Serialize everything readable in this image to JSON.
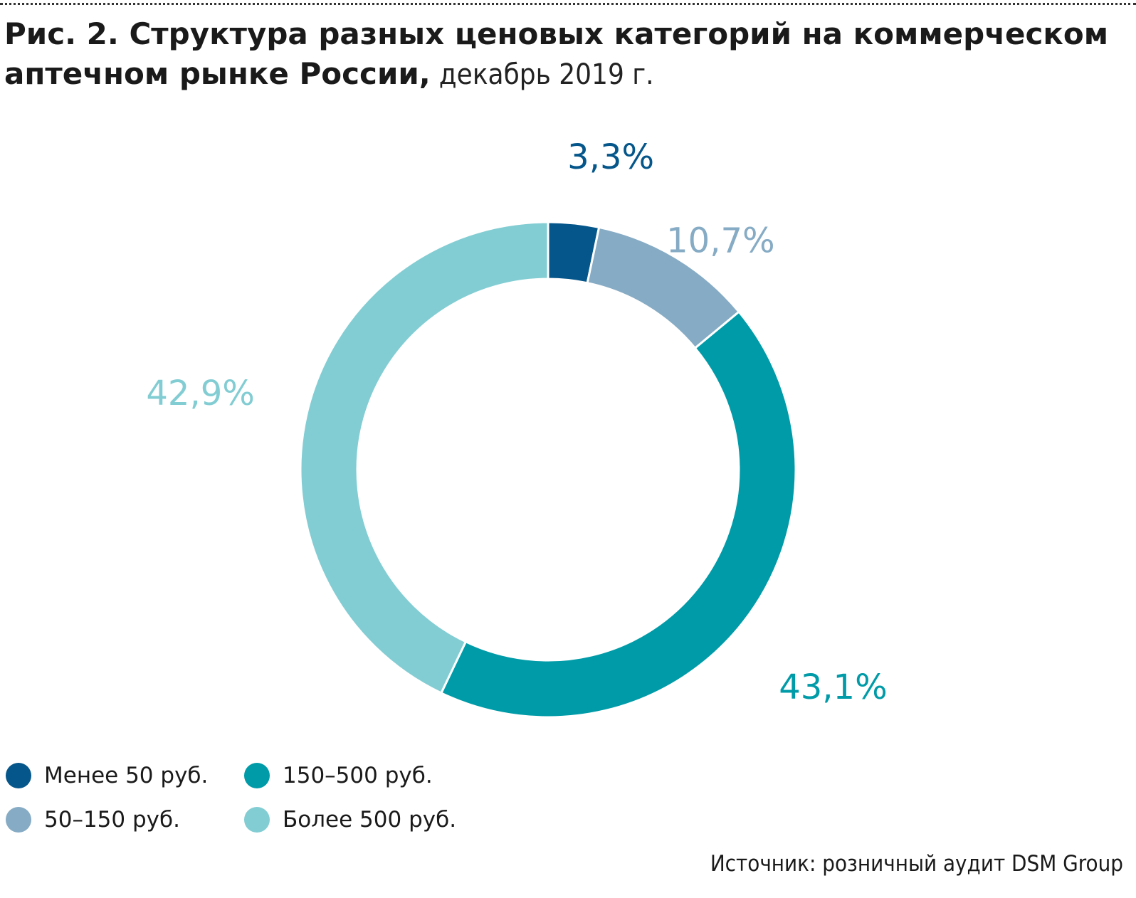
{
  "header": {
    "title": "Рис. 2. Структура разных ценовых категорий на коммерческом аптечном рынке России,",
    "subtitle": "декабрь 2019 г."
  },
  "chart_data": {
    "type": "pie",
    "style": "donut",
    "direction": "clockwise",
    "start": "top",
    "categories": [
      "Менее 50 руб.",
      "50–150 руб.",
      "150–500 руб.",
      "Более 500 руб."
    ],
    "values": [
      3.3,
      10.7,
      43.1,
      42.9
    ],
    "value_labels": [
      "3,3%",
      "10,7%",
      "43,1%",
      "42,9%"
    ],
    "colors": [
      "#05568a",
      "#86abc4",
      "#009ba8",
      "#82cdd3"
    ],
    "legend_position": "bottom-left"
  },
  "legend": {
    "items": [
      {
        "label": "Менее 50 руб.",
        "color": "#05568a"
      },
      {
        "label": "150–500 руб.",
        "color": "#009ba8"
      },
      {
        "label": "50–150 руб.",
        "color": "#86abc4"
      },
      {
        "label": "Более 500 руб.",
        "color": "#82cdd3"
      }
    ]
  },
  "source": "Источник: розничный аудит DSM Group"
}
